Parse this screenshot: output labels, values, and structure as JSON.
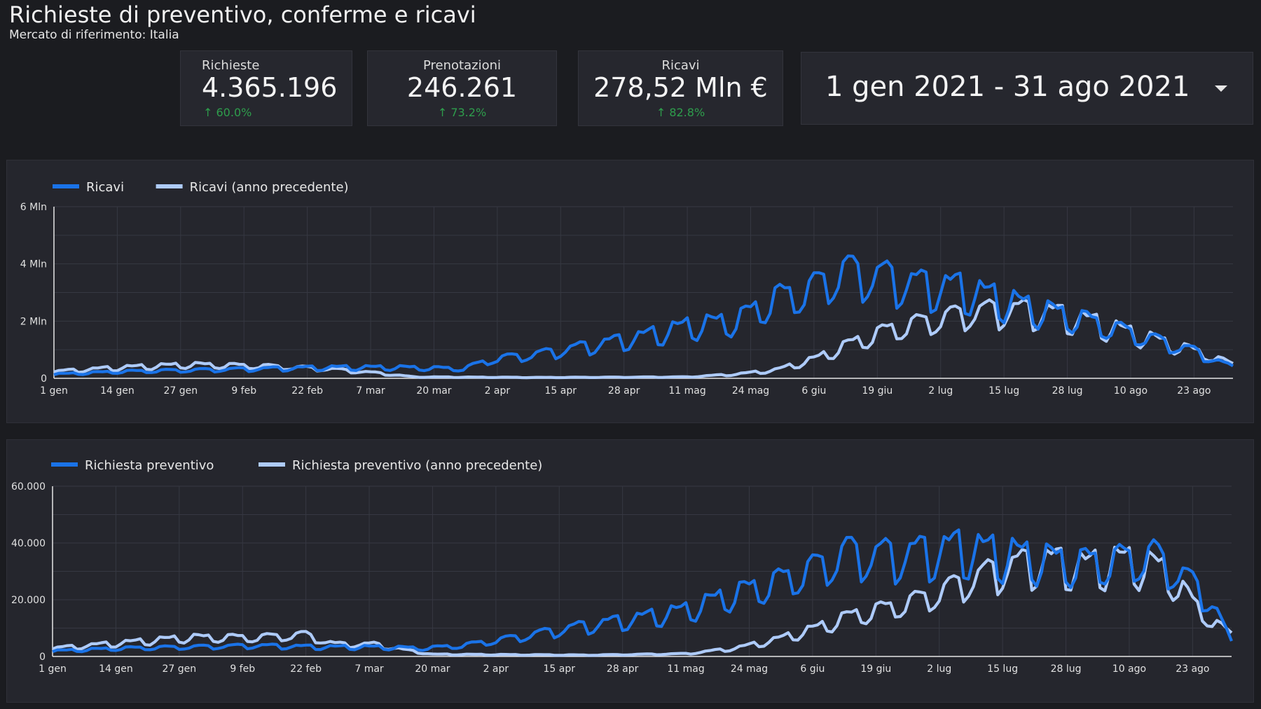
{
  "header": {
    "title": "Richieste di preventivo, conferme e ricavi",
    "subtitle": "Mercato di riferimento: Italia"
  },
  "scorecards": [
    {
      "label": "Richieste",
      "value": "4.365.196",
      "delta": "↑ 60.0%"
    },
    {
      "label": "Prenotazioni",
      "value": "246.261",
      "delta": "↑ 73.2%"
    },
    {
      "label": "Ricavi",
      "value": "278,52 Mln €",
      "delta": "↑ 82.8%"
    }
  ],
  "date_range": {
    "value": "1 gen 2021 - 31 ago 2021",
    "icon": "chevron-down-icon"
  },
  "colors": {
    "current": "#1a73e8",
    "previous": "#aecbfa",
    "positive_delta": "#2e9d4c"
  },
  "chart_data": [
    {
      "type": "line",
      "x_ticks": [
        "1 gen",
        "14 gen",
        "27 gen",
        "9 feb",
        "22 feb",
        "7 mar",
        "20 mar",
        "2 apr",
        "15 apr",
        "28 apr",
        "11 mag",
        "24 mag",
        "6 giu",
        "19 giu",
        "2 lug",
        "15 lug",
        "28 lug",
        "10 ago",
        "23 ago"
      ],
      "y_ticks": [
        "0",
        "2 Mln",
        "4 Mln",
        "6 Mln"
      ],
      "ylim": [
        0,
        6000000
      ],
      "grid": true,
      "legend": "top-left",
      "series": [
        {
          "name": "Ricavi",
          "color": "#1a73e8",
          "points": [
            [
              0,
              150000
            ],
            [
              14,
              250000
            ],
            [
              28,
              300000
            ],
            [
              42,
              350000
            ],
            [
              56,
              400000
            ],
            [
              70,
              400000
            ],
            [
              84,
              350000
            ],
            [
              90,
              700000
            ],
            [
              100,
              900000
            ],
            [
              110,
              1200000
            ],
            [
              120,
              1500000
            ],
            [
              130,
              1900000
            ],
            [
              140,
              2100000
            ],
            [
              148,
              2900000
            ],
            [
              155,
              3200000
            ],
            [
              162,
              3900000
            ],
            [
              170,
              3700000
            ],
            [
              178,
              3400000
            ],
            [
              186,
              3300000
            ],
            [
              194,
              2900000
            ],
            [
              202,
              2500000
            ],
            [
              210,
              2200000
            ],
            [
              218,
              1800000
            ],
            [
              226,
              1400000
            ],
            [
              234,
              1000000
            ],
            [
              242,
              400000
            ]
          ],
          "weekly_oscillation": true
        },
        {
          "name": "Ricavi (anno precedente)",
          "color": "#aecbfa",
          "points": [
            [
              0,
              250000
            ],
            [
              14,
              400000
            ],
            [
              28,
              500000
            ],
            [
              42,
              450000
            ],
            [
              56,
              350000
            ],
            [
              66,
              200000
            ],
            [
              74,
              50000
            ],
            [
              100,
              30000
            ],
            [
              130,
              50000
            ],
            [
              140,
              150000
            ],
            [
              148,
              300000
            ],
            [
              156,
              700000
            ],
            [
              164,
              1300000
            ],
            [
              172,
              1800000
            ],
            [
              180,
              2100000
            ],
            [
              188,
              2400000
            ],
            [
              196,
              2500000
            ],
            [
              204,
              2400000
            ],
            [
              212,
              2100000
            ],
            [
              220,
              1700000
            ],
            [
              228,
              1300000
            ],
            [
              236,
              900000
            ],
            [
              242,
              500000
            ]
          ],
          "weekly_oscillation": true
        }
      ]
    },
    {
      "type": "line",
      "x_ticks": [
        "1 gen",
        "14 gen",
        "27 gen",
        "9 feb",
        "22 feb",
        "7 mar",
        "20 mar",
        "2 apr",
        "15 apr",
        "28 apr",
        "11 mag",
        "24 mag",
        "6 giu",
        "19 giu",
        "2 lug",
        "15 lug",
        "28 lug",
        "10 ago",
        "23 ago"
      ],
      "y_ticks": [
        "0",
        "20.000",
        "40.000",
        "60.000"
      ],
      "ylim": [
        0,
        60000
      ],
      "grid": true,
      "legend": "top-left",
      "series": [
        {
          "name": "Richiesta preventivo",
          "color": "#1a73e8",
          "points": [
            [
              0,
              2000
            ],
            [
              14,
              3000
            ],
            [
              28,
              3500
            ],
            [
              42,
              4000
            ],
            [
              56,
              3500
            ],
            [
              66,
              3500
            ],
            [
              76,
              3000
            ],
            [
              84,
              4000
            ],
            [
              95,
              7000
            ],
            [
              108,
              11000
            ],
            [
              120,
              14000
            ],
            [
              130,
              17000
            ],
            [
              138,
              22000
            ],
            [
              148,
              27000
            ],
            [
              156,
              32000
            ],
            [
              163,
              38000
            ],
            [
              170,
              37000
            ],
            [
              178,
              38000
            ],
            [
              186,
              40000
            ],
            [
              194,
              38000
            ],
            [
              202,
              36000
            ],
            [
              210,
              34000
            ],
            [
              218,
              35000
            ],
            [
              226,
              37000
            ],
            [
              232,
              30000
            ],
            [
              238,
              20000
            ],
            [
              242,
              5000
            ]
          ],
          "weekly_oscillation": true
        },
        {
          "name": "Richiesta preventivo (anno precedente)",
          "color": "#aecbfa",
          "points": [
            [
              0,
              3000
            ],
            [
              14,
              5000
            ],
            [
              28,
              7000
            ],
            [
              42,
              7000
            ],
            [
              52,
              8000
            ],
            [
              58,
              4500
            ],
            [
              66,
              4500
            ],
            [
              72,
              2500
            ],
            [
              78,
              800
            ],
            [
              110,
              500
            ],
            [
              130,
              1000
            ],
            [
              140,
              3000
            ],
            [
              148,
              6000
            ],
            [
              156,
              10000
            ],
            [
              164,
              15000
            ],
            [
              172,
              18000
            ],
            [
              180,
              22000
            ],
            [
              188,
              28000
            ],
            [
              196,
              33000
            ],
            [
              204,
              35000
            ],
            [
              212,
              33000
            ],
            [
              220,
              35000
            ],
            [
              228,
              32000
            ],
            [
              234,
              20000
            ],
            [
              238,
              13000
            ],
            [
              242,
              8000
            ]
          ],
          "weekly_oscillation": true
        }
      ]
    }
  ]
}
